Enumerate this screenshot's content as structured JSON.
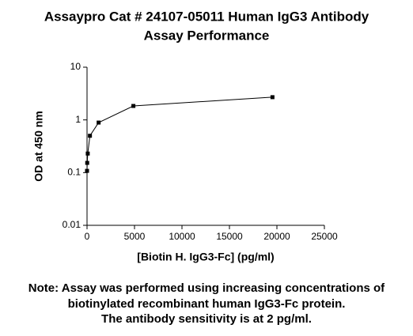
{
  "chart_data": {
    "type": "line",
    "title": [
      "Assaypro Cat # 24107-05011 Human IgG3 Antibody",
      "Assay Performance"
    ],
    "xlabel": "[Biotin H. IgG3-Fc] (pg/ml)",
    "ylabel": "OD at 450 nm",
    "note": [
      "Note: Assay was performed using increasing concentrations of",
      "biotinylated recombinant human IgG3-Fc protein.",
      "The antibody sensitivity is at 2 pg/ml."
    ],
    "x": [
      0,
      19,
      76,
      305,
      1221,
      4883,
      19531
    ],
    "values": [
      0.108,
      0.153,
      0.23,
      0.5,
      0.89,
      1.84,
      2.7
    ],
    "color": "#000000",
    "xlim": [
      0,
      25000
    ],
    "xticks": [
      0,
      5000,
      10000,
      15000,
      20000,
      25000
    ],
    "ylim": [
      0.01,
      10
    ],
    "yticks": [
      0.01,
      0.1,
      1,
      10
    ],
    "yscale": "log"
  }
}
